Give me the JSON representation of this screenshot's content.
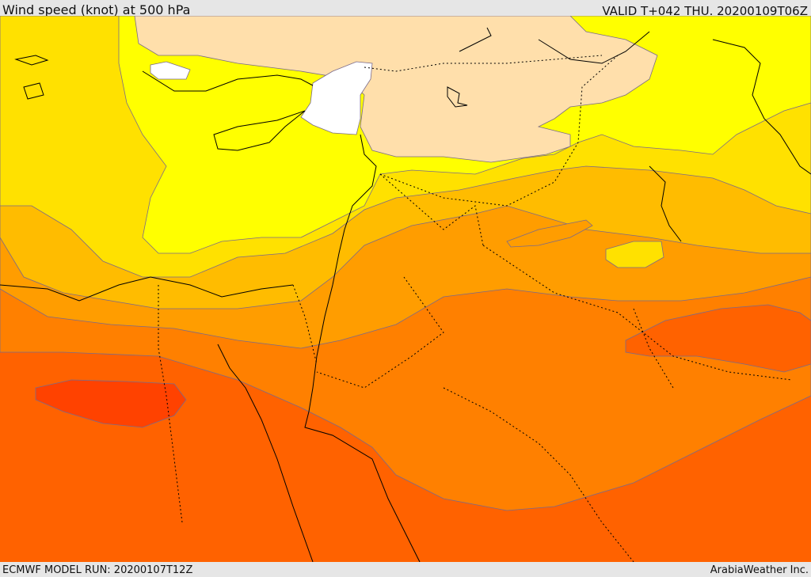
{
  "header": {
    "title": "Wind speed (knot) at 500 hPa",
    "valid": "VALID T+042 THU. 20200109T06Z"
  },
  "footer": {
    "model_run": "ECMWF MODEL RUN: 20200107T12Z",
    "credit": "ArabiaWeather Inc."
  },
  "colors": {
    "calm": "#ffffff",
    "very_light": "#ffdfab",
    "light": "#ffff00",
    "light_moderate": "#ffe100",
    "moderate": "#ffbc00",
    "moderate_strong": "#ff9d00",
    "strong": "#ff8000",
    "very_strong": "#ff6200",
    "extreme": "#ff4200",
    "coastline": "#000000",
    "contour": "#7a6a8a"
  }
}
